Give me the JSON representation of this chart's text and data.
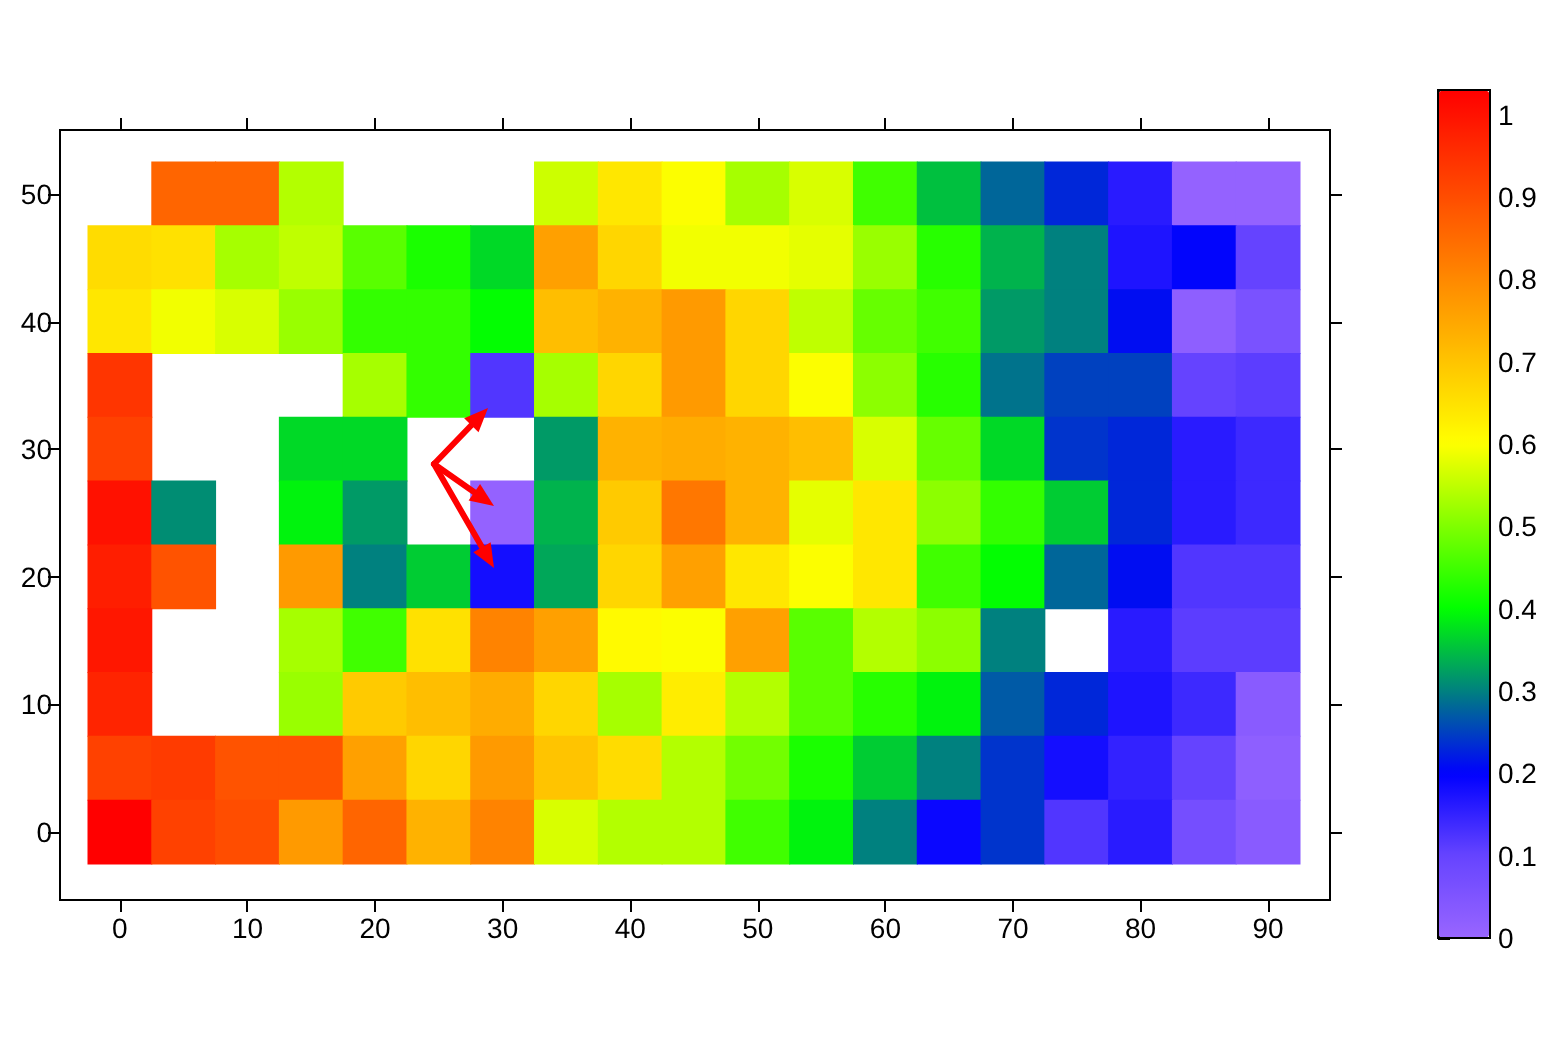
{
  "chart_data": {
    "type": "heatmap",
    "categories": [
      "0",
      null,
      "10",
      null,
      "20",
      null,
      "30",
      null,
      "40",
      null,
      "50",
      null,
      "60",
      null,
      "70",
      null,
      "80",
      null,
      "90"
    ],
    "y_categories": [
      "50",
      null,
      "40",
      null,
      "30",
      null,
      "20",
      null,
      "10",
      null,
      "0"
    ],
    "cells": [
      [
        null,
        0.86,
        0.86,
        0.54,
        null,
        null,
        null,
        0.56,
        0.64,
        0.6,
        0.53,
        0.57,
        0.45,
        0.35,
        0.28,
        0.23,
        0.16,
        0.01,
        0.01
      ],
      [
        0.66,
        0.65,
        0.53,
        0.55,
        0.47,
        0.42,
        0.37,
        0.76,
        0.67,
        0.59,
        0.59,
        0.58,
        0.52,
        0.43,
        0.34,
        0.3,
        0.17,
        0.2,
        0.1
      ],
      [
        0.64,
        0.59,
        0.57,
        0.52,
        0.44,
        0.44,
        0.4,
        0.71,
        0.73,
        0.77,
        0.67,
        0.55,
        0.48,
        0.45,
        0.32,
        0.3,
        0.21,
        0.02,
        0.06
      ],
      [
        0.94,
        null,
        null,
        null,
        0.53,
        0.44,
        0.12,
        0.53,
        0.67,
        0.77,
        0.67,
        0.6,
        0.51,
        0.43,
        0.29,
        0.25,
        0.25,
        0.1,
        0.11
      ],
      [
        0.92,
        null,
        null,
        0.37,
        0.37,
        null,
        null,
        0.32,
        0.73,
        0.74,
        0.73,
        0.71,
        0.57,
        0.48,
        0.37,
        0.24,
        0.23,
        0.16,
        0.14
      ],
      [
        1.0,
        0.31,
        null,
        0.39,
        0.32,
        null,
        0.01,
        0.34,
        0.69,
        0.83,
        0.73,
        0.58,
        0.64,
        0.51,
        0.44,
        0.36,
        0.23,
        0.16,
        0.14
      ],
      [
        0.98,
        0.89,
        null,
        0.77,
        0.3,
        0.36,
        0.18,
        0.33,
        0.67,
        0.76,
        0.64,
        0.6,
        0.64,
        0.45,
        0.4,
        0.28,
        0.21,
        0.12,
        0.12
      ],
      [
        0.99,
        null,
        null,
        0.53,
        0.45,
        0.65,
        0.81,
        0.76,
        0.61,
        0.6,
        0.76,
        0.47,
        0.54,
        0.51,
        0.3,
        null,
        0.16,
        0.11,
        0.11
      ],
      [
        0.97,
        null,
        null,
        0.52,
        0.69,
        0.71,
        0.74,
        0.67,
        0.53,
        0.63,
        0.54,
        0.47,
        0.43,
        0.39,
        0.27,
        0.23,
        0.17,
        0.14,
        0.03
      ],
      [
        0.92,
        0.93,
        0.89,
        0.89,
        0.76,
        0.67,
        0.77,
        0.7,
        0.66,
        0.54,
        0.49,
        0.42,
        0.36,
        0.3,
        0.24,
        0.18,
        0.15,
        0.1,
        0.02
      ],
      [
        1.03,
        0.92,
        0.9,
        0.77,
        0.86,
        0.73,
        0.81,
        0.57,
        0.54,
        0.54,
        0.45,
        0.39,
        0.3,
        0.19,
        0.24,
        0.12,
        0.16,
        0.07,
        0.03
      ]
    ],
    "clim": [
      0,
      1.03
    ],
    "cticks": [
      0,
      0.1,
      0.2,
      0.3,
      0.4,
      0.5,
      0.6,
      0.7,
      0.8,
      0.9,
      1
    ]
  }
}
